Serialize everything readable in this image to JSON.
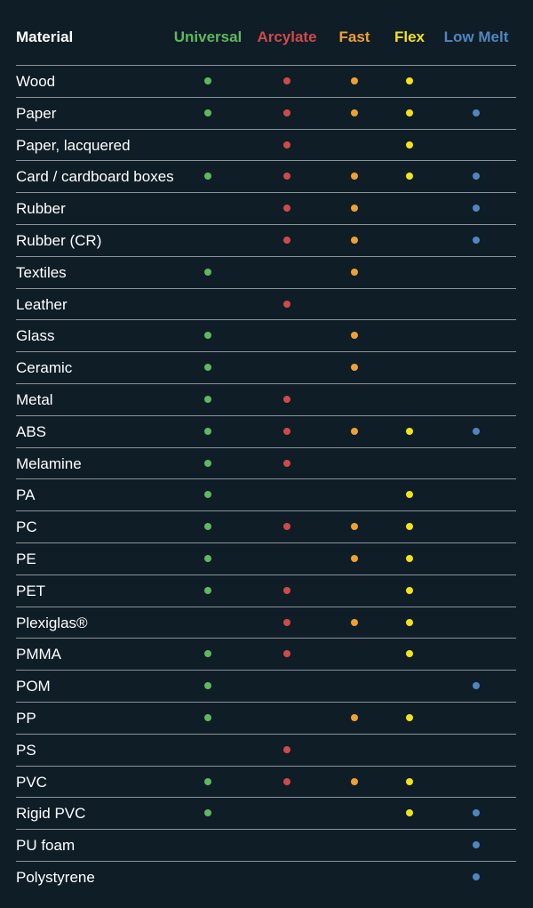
{
  "colors": {
    "background": "#0f1d27",
    "universal": "#5fb85f",
    "arcylate": "#cf4a4a",
    "fast": "#f0a030",
    "flex": "#f2e21a",
    "low_melt": "#4f86bf"
  },
  "header": {
    "material": "Material",
    "columns": [
      {
        "key": "universal",
        "label": "Universal"
      },
      {
        "key": "arcylate",
        "label": "Arcylate"
      },
      {
        "key": "fast",
        "label": "Fast"
      },
      {
        "key": "flex",
        "label": "Flex"
      },
      {
        "key": "low_melt",
        "label": "Low Melt"
      }
    ]
  },
  "rows": [
    {
      "material": "Wood",
      "universal": true,
      "arcylate": true,
      "fast": true,
      "flex": true,
      "low_melt": false
    },
    {
      "material": "Paper",
      "universal": true,
      "arcylate": true,
      "fast": true,
      "flex": true,
      "low_melt": true
    },
    {
      "material": "Paper, lacquered",
      "universal": false,
      "arcylate": true,
      "fast": false,
      "flex": true,
      "low_melt": false
    },
    {
      "material": "Card / cardboard boxes",
      "universal": true,
      "arcylate": true,
      "fast": true,
      "flex": true,
      "low_melt": true
    },
    {
      "material": "Rubber",
      "universal": false,
      "arcylate": true,
      "fast": true,
      "flex": false,
      "low_melt": true
    },
    {
      "material": "Rubber (CR)",
      "universal": false,
      "arcylate": true,
      "fast": true,
      "flex": false,
      "low_melt": true
    },
    {
      "material": "Textiles",
      "universal": true,
      "arcylate": false,
      "fast": true,
      "flex": false,
      "low_melt": false
    },
    {
      "material": "Leather",
      "universal": false,
      "arcylate": true,
      "fast": false,
      "flex": false,
      "low_melt": false
    },
    {
      "material": "Glass",
      "universal": true,
      "arcylate": false,
      "fast": true,
      "flex": false,
      "low_melt": false
    },
    {
      "material": "Ceramic",
      "universal": true,
      "arcylate": false,
      "fast": true,
      "flex": false,
      "low_melt": false
    },
    {
      "material": "Metal",
      "universal": true,
      "arcylate": true,
      "fast": false,
      "flex": false,
      "low_melt": false
    },
    {
      "material": "ABS",
      "universal": true,
      "arcylate": true,
      "fast": true,
      "flex": true,
      "low_melt": true
    },
    {
      "material": "Melamine",
      "universal": true,
      "arcylate": true,
      "fast": false,
      "flex": false,
      "low_melt": false
    },
    {
      "material": "PA",
      "universal": true,
      "arcylate": false,
      "fast": false,
      "flex": true,
      "low_melt": false
    },
    {
      "material": "PC",
      "universal": true,
      "arcylate": true,
      "fast": true,
      "flex": true,
      "low_melt": false
    },
    {
      "material": "PE",
      "universal": true,
      "arcylate": false,
      "fast": true,
      "flex": true,
      "low_melt": false
    },
    {
      "material": "PET",
      "universal": true,
      "arcylate": true,
      "fast": false,
      "flex": true,
      "low_melt": false
    },
    {
      "material": "Plexiglas®",
      "universal": false,
      "arcylate": true,
      "fast": true,
      "flex": true,
      "low_melt": false
    },
    {
      "material": "PMMA",
      "universal": true,
      "arcylate": true,
      "fast": false,
      "flex": true,
      "low_melt": false
    },
    {
      "material": "POM",
      "universal": true,
      "arcylate": false,
      "fast": false,
      "flex": false,
      "low_melt": true
    },
    {
      "material": "PP",
      "universal": true,
      "arcylate": false,
      "fast": true,
      "flex": true,
      "low_melt": false
    },
    {
      "material": "PS",
      "universal": false,
      "arcylate": true,
      "fast": false,
      "flex": false,
      "low_melt": false
    },
    {
      "material": "PVC",
      "universal": true,
      "arcylate": true,
      "fast": true,
      "flex": true,
      "low_melt": false
    },
    {
      "material": "Rigid PVC",
      "universal": true,
      "arcylate": false,
      "fast": false,
      "flex": true,
      "low_melt": true
    },
    {
      "material": "PU foam",
      "universal": false,
      "arcylate": false,
      "fast": false,
      "flex": false,
      "low_melt": true
    },
    {
      "material": "Polystyrene",
      "universal": false,
      "arcylate": false,
      "fast": false,
      "flex": false,
      "low_melt": true
    }
  ]
}
